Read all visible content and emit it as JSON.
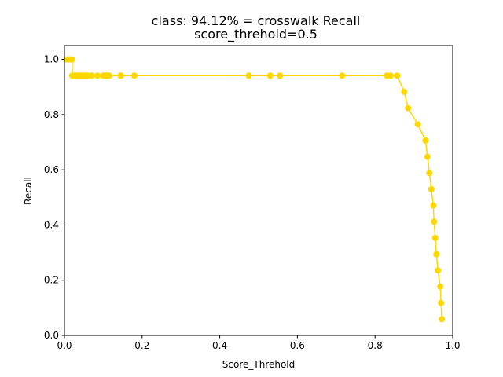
{
  "chart_data": {
    "type": "line",
    "title": "class: 94.12% = crosswalk Recall",
    "subtitle": "score_threhold=0.5",
    "xlabel": "Score_Threhold",
    "ylabel": "Recall",
    "xlim": [
      0.0,
      1.0
    ],
    "ylim": [
      0.0,
      1.05
    ],
    "x_ticks": [
      "0.0",
      "0.2",
      "0.4",
      "0.6",
      "0.8",
      "1.0"
    ],
    "y_ticks": [
      "0.0",
      "0.2",
      "0.4",
      "0.6",
      "0.8",
      "1.0"
    ],
    "grid": false,
    "line_color": "#ffd700",
    "marker": "circle",
    "series": [
      {
        "x": [
          0.005,
          0.01,
          0.015,
          0.02,
          0.02,
          0.025,
          0.03,
          0.035,
          0.04,
          0.045,
          0.05,
          0.055,
          0.06,
          0.07,
          0.085,
          0.1,
          0.105,
          0.11,
          0.115,
          0.145,
          0.18,
          0.475,
          0.53,
          0.555,
          0.715,
          0.83,
          0.84,
          0.857,
          0.875,
          0.885,
          0.91,
          0.93,
          0.935,
          0.94,
          0.945,
          0.95,
          0.952,
          0.955,
          0.958,
          0.962,
          0.968,
          0.97,
          0.972
        ],
        "y": [
          1.0,
          1.0,
          1.0,
          1.0,
          0.9412,
          0.9412,
          0.9412,
          0.9412,
          0.9412,
          0.9412,
          0.9412,
          0.9412,
          0.9412,
          0.9412,
          0.9412,
          0.9412,
          0.9412,
          0.9412,
          0.9412,
          0.9412,
          0.9412,
          0.9412,
          0.9412,
          0.9412,
          0.9412,
          0.9412,
          0.9412,
          0.9412,
          0.8824,
          0.8235,
          0.7647,
          0.7059,
          0.6471,
          0.5882,
          0.5294,
          0.4706,
          0.4118,
          0.3529,
          0.2941,
          0.2353,
          0.1765,
          0.1176,
          0.0588
        ]
      }
    ]
  }
}
